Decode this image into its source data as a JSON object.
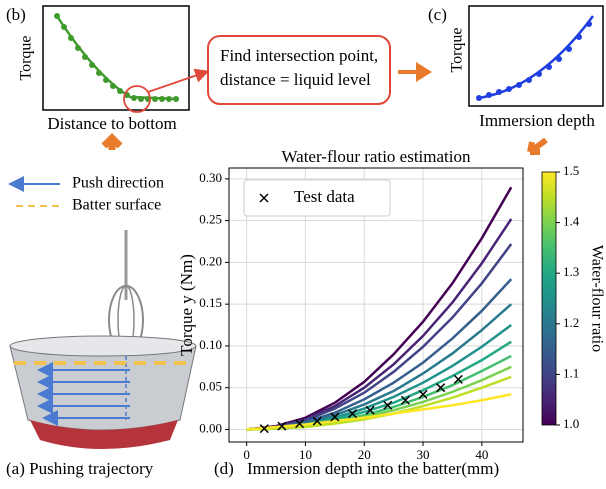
{
  "panel_b": {
    "tag": "(b)",
    "ylabel": "Torque",
    "xlabel": "Distance to bottom"
  },
  "callout": {
    "line1": "Find intersection point,",
    "line2": "distance = liquid level"
  },
  "panel_c": {
    "tag": "(c)",
    "ylabel": "Torque",
    "xlabel": "Immersion depth"
  },
  "panel_a": {
    "legend": [
      "Push direction",
      "Batter surface"
    ],
    "caption": "(a)  Pushing trajectory"
  },
  "panel_d_tag": "(d)",
  "chart_data": {
    "type": "line",
    "title": "Water-flour ratio estimation",
    "xlabel": "Immersion depth into the batter(mm)",
    "ylabel": "Torque y (Nm)",
    "x": [
      0,
      5,
      10,
      15,
      20,
      25,
      30,
      35,
      40,
      45
    ],
    "series": [
      {
        "color": "#440154",
        "values": [
          0,
          0.004,
          0.014,
          0.032,
          0.057,
          0.09,
          0.129,
          0.175,
          0.229,
          0.29
        ]
      },
      {
        "color": "#482475",
        "values": [
          0,
          0.003,
          0.012,
          0.028,
          0.05,
          0.078,
          0.112,
          0.152,
          0.199,
          0.252
        ]
      },
      {
        "color": "#414487",
        "values": [
          0,
          0.003,
          0.011,
          0.025,
          0.044,
          0.069,
          0.099,
          0.134,
          0.175,
          0.222
        ]
      },
      {
        "color": "#355f8d",
        "values": [
          0,
          0.002,
          0.009,
          0.02,
          0.036,
          0.056,
          0.08,
          0.109,
          0.142,
          0.18
        ]
      },
      {
        "color": "#2a788e",
        "values": [
          0,
          0.002,
          0.007,
          0.017,
          0.03,
          0.046,
          0.067,
          0.091,
          0.119,
          0.15
        ]
      },
      {
        "color": "#21918c",
        "values": [
          0,
          0.002,
          0.006,
          0.014,
          0.025,
          0.039,
          0.056,
          0.076,
          0.099,
          0.125
        ]
      },
      {
        "color": "#22a884",
        "values": [
          0,
          0.001,
          0.005,
          0.012,
          0.021,
          0.032,
          0.047,
          0.064,
          0.083,
          0.105
        ]
      },
      {
        "color": "#44bf70",
        "values": [
          0,
          0.001,
          0.004,
          0.01,
          0.017,
          0.027,
          0.039,
          0.053,
          0.07,
          0.088
        ]
      },
      {
        "color": "#7ad151",
        "values": [
          0,
          0.001,
          0.004,
          0.008,
          0.015,
          0.023,
          0.033,
          0.045,
          0.059,
          0.075
        ]
      },
      {
        "color": "#bddf26",
        "values": [
          0,
          0.001,
          0.003,
          0.007,
          0.012,
          0.019,
          0.028,
          0.038,
          0.05,
          0.063
        ]
      },
      {
        "color": "#fde725",
        "values": [
          0,
          0.003,
          0.006,
          0.01,
          0.014,
          0.019,
          0.024,
          0.029,
          0.035,
          0.042
        ]
      }
    ],
    "test_data": {
      "name": "Test data",
      "color": "#000000",
      "x": [
        3,
        6,
        9,
        12,
        15,
        18,
        21,
        24,
        27,
        30,
        33,
        36
      ],
      "y": [
        0.001,
        0.004,
        0.007,
        0.01,
        0.015,
        0.019,
        0.023,
        0.029,
        0.035,
        0.042,
        0.05,
        0.06
      ]
    },
    "xlim": [
      -3,
      47
    ],
    "ylim": [
      -0.015,
      0.313
    ],
    "xticks": [
      0,
      10,
      20,
      30,
      40
    ],
    "yticks": [
      {
        "value": 0,
        "label": "0.00"
      },
      {
        "value": 0.05,
        "label": "0.05"
      },
      {
        "value": 0.1,
        "label": "0.10"
      },
      {
        "value": 0.15,
        "label": "0.15"
      },
      {
        "value": 0.2,
        "label": "0.20"
      },
      {
        "value": 0.25,
        "label": "0.25"
      },
      {
        "value": 0.3,
        "label": "0.30"
      }
    ],
    "grid": true,
    "legend": "upper left",
    "colorbar": {
      "label": "Water-flour ratio",
      "clim": [
        1.0,
        1.5
      ],
      "colors": [
        "#440154",
        "#482475",
        "#414487",
        "#355f8d",
        "#2a788e",
        "#21918c",
        "#22a884",
        "#44bf70",
        "#7ad151",
        "#bddf26",
        "#fde725"
      ],
      "ticks": [
        {
          "value": 1.0,
          "label": "1.0"
        },
        {
          "value": 1.1,
          "label": "1.1"
        },
        {
          "value": 1.2,
          "label": "1.2"
        },
        {
          "value": 1.3,
          "label": "1.3"
        },
        {
          "value": 1.4,
          "label": "1.4"
        },
        {
          "value": 1.5,
          "label": "1.5"
        }
      ]
    }
  }
}
